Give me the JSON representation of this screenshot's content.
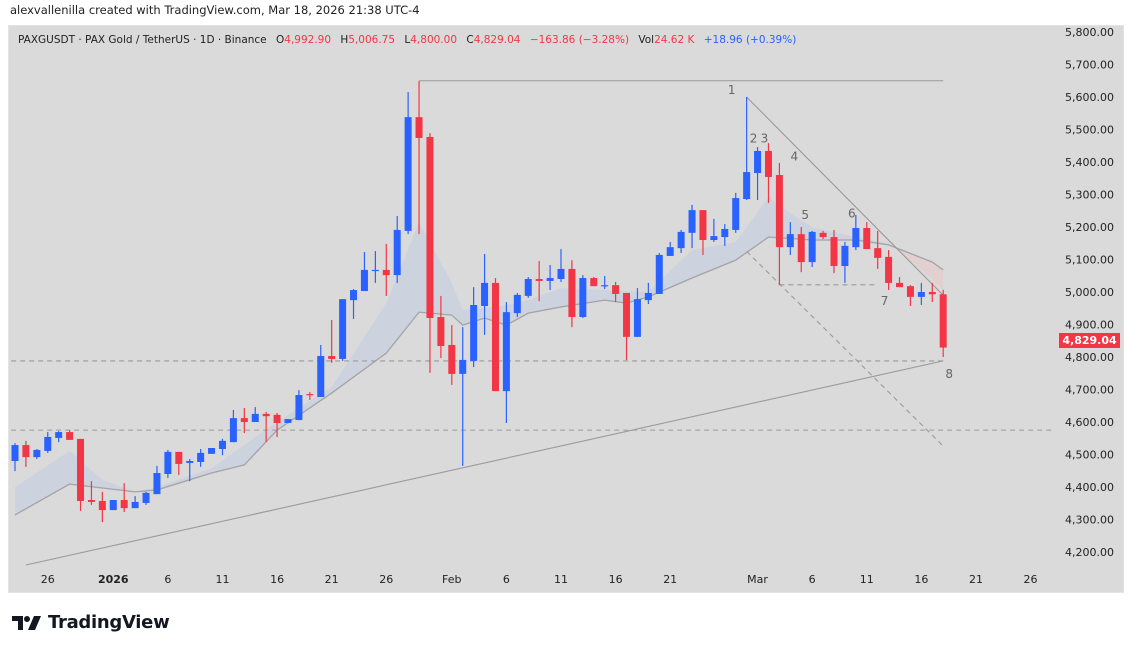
{
  "credit": "alexvallenilla created with TradingView.com, Mar 18, 2026 21:38 UTC-4",
  "legend": {
    "symbol": "PAXGUSDT · PAX Gold / TetherUS · 1D · Binance",
    "o_label": "O",
    "o_value": "4,992.90",
    "h_label": "H",
    "h_value": "5,006.75",
    "l_label": "L",
    "l_value": "4,800.00",
    "c_label": "C",
    "c_value": "4,829.04",
    "change": "−163.86 (−3.28%)",
    "vol_label": "Vol",
    "vol_value": "24.62 K",
    "vol_change": "+18.96 (+0.39%)"
  },
  "last_price_label": "4,829.04",
  "brand": "TradingView",
  "colors": {
    "up": "#2962ff",
    "down": "#f23645",
    "background": "#dadada",
    "ma_bull_fill": "#cdd3de",
    "ma_bear_fill": "#e2d0d0",
    "drawing": "#9a9a9a"
  },
  "chart_data": {
    "type": "candlestick",
    "symbol": "PAXGUSDT",
    "interval": "1D",
    "ylim": [
      4150,
      5820
    ],
    "grid": false,
    "y_ticks": [
      "5,800.00",
      "5,700.00",
      "5,600.00",
      "5,500.00",
      "5,400.00",
      "5,300.00",
      "5,200.00",
      "5,100.00",
      "5,000.00",
      "4,900.00",
      "4,800.00",
      "4,700.00",
      "4,600.00",
      "4,500.00",
      "4,400.00",
      "4,300.00",
      "4,200.00"
    ],
    "y_tick_values": [
      5800,
      5700,
      5600,
      5500,
      5400,
      5300,
      5200,
      5100,
      5000,
      4900,
      4800,
      4700,
      4600,
      4500,
      4400,
      4300,
      4200
    ],
    "x_ticks": [
      {
        "date": "2025-12-26",
        "label": "26"
      },
      {
        "date": "2026-01-01",
        "label": "2026"
      },
      {
        "date": "2026-01-06",
        "label": "6"
      },
      {
        "date": "2026-01-11",
        "label": "11"
      },
      {
        "date": "2026-01-16",
        "label": "16"
      },
      {
        "date": "2026-01-21",
        "label": "21"
      },
      {
        "date": "2026-01-26",
        "label": "26"
      },
      {
        "date": "2026-02-01",
        "label": "Feb"
      },
      {
        "date": "2026-02-06",
        "label": "6"
      },
      {
        "date": "2026-02-11",
        "label": "11"
      },
      {
        "date": "2026-02-16",
        "label": "16"
      },
      {
        "date": "2026-02-21",
        "label": "21"
      },
      {
        "date": "2026-03-01",
        "label": "Mar"
      },
      {
        "date": "2026-03-06",
        "label": "6"
      },
      {
        "date": "2026-03-11",
        "label": "11"
      },
      {
        "date": "2026-03-16",
        "label": "16"
      },
      {
        "date": "2026-03-21",
        "label": "21"
      },
      {
        "date": "2026-03-26",
        "label": "26"
      }
    ],
    "x_range": [
      "2025-12-21",
      "2026-03-28"
    ],
    "candles_fields": [
      "date",
      "open",
      "high",
      "low",
      "close"
    ],
    "candles": [
      [
        "2025-12-23",
        4480,
        4535,
        4449,
        4529
      ],
      [
        "2025-12-24",
        4529,
        4542,
        4462,
        4492
      ],
      [
        "2025-12-25",
        4492,
        4517,
        4486,
        4514
      ],
      [
        "2025-12-26",
        4511,
        4569,
        4505,
        4554
      ],
      [
        "2025-12-27",
        4551,
        4572,
        4538,
        4569
      ],
      [
        "2025-12-28",
        4569,
        4575,
        4545,
        4545
      ],
      [
        "2025-12-29",
        4548,
        4548,
        4326,
        4357
      ],
      [
        "2025-12-30",
        4360,
        4418,
        4345,
        4354
      ],
      [
        "2025-12-31",
        4357,
        4385,
        4292,
        4329
      ],
      [
        "2026-01-01",
        4329,
        4360,
        4329,
        4360
      ],
      [
        "2026-01-02",
        4360,
        4412,
        4323,
        4335
      ],
      [
        "2026-01-03",
        4335,
        4372,
        4335,
        4354
      ],
      [
        "2026-01-04",
        4351,
        4385,
        4345,
        4382
      ],
      [
        "2026-01-05",
        4378,
        4465,
        4378,
        4443
      ],
      [
        "2026-01-06",
        4440,
        4514,
        4428,
        4508
      ],
      [
        "2026-01-07",
        4508,
        4508,
        4437,
        4471
      ],
      [
        "2026-01-08",
        4474,
        4486,
        4418,
        4480
      ],
      [
        "2026-01-09",
        4477,
        4517,
        4462,
        4505
      ],
      [
        "2026-01-10",
        4502,
        4520,
        4502,
        4520
      ],
      [
        "2026-01-11",
        4517,
        4548,
        4498,
        4542
      ],
      [
        "2026-01-12",
        4538,
        4637,
        4538,
        4612
      ],
      [
        "2026-01-13",
        4612,
        4643,
        4566,
        4600
      ],
      [
        "2026-01-14",
        4600,
        4646,
        4600,
        4625
      ],
      [
        "2026-01-15",
        4625,
        4631,
        4538,
        4618
      ],
      [
        "2026-01-16",
        4622,
        4628,
        4554,
        4597
      ],
      [
        "2026-01-17",
        4597,
        4609,
        4597,
        4609
      ],
      [
        "2026-01-18",
        4606,
        4698,
        4606,
        4683
      ],
      [
        "2026-01-19",
        4686,
        4692,
        4668,
        4683
      ],
      [
        "2026-01-20",
        4677,
        4837,
        4677,
        4803
      ],
      [
        "2026-01-21",
        4803,
        4914,
        4782,
        4794
      ],
      [
        "2026-01-22",
        4794,
        4978,
        4788,
        4978
      ],
      [
        "2026-01-23",
        4975,
        5009,
        4917,
        5006
      ],
      [
        "2026-01-24",
        5003,
        5123,
        5003,
        5068
      ],
      [
        "2026-01-25",
        5066,
        5126,
        5028,
        5068
      ],
      [
        "2026-01-26",
        5068,
        5148,
        4988,
        5052
      ],
      [
        "2026-01-27",
        5052,
        5234,
        5028,
        5191
      ],
      [
        "2026-01-28",
        5188,
        5615,
        5178,
        5538
      ],
      [
        "2026-01-29",
        5538,
        5649,
        5178,
        5474
      ],
      [
        "2026-01-30",
        5477,
        5489,
        4751,
        4920
      ],
      [
        "2026-01-31",
        4923,
        4988,
        4797,
        4834
      ],
      [
        "2026-02-01",
        4837,
        4898,
        4714,
        4748
      ],
      [
        "2026-02-02",
        4748,
        4892,
        4465,
        4791
      ],
      [
        "2026-02-03",
        4788,
        5015,
        4769,
        4960
      ],
      [
        "2026-02-04",
        4957,
        5117,
        4868,
        5028
      ],
      [
        "2026-02-05",
        5028,
        5043,
        4695,
        4695
      ],
      [
        "2026-02-06",
        4695,
        4969,
        4597,
        4938
      ],
      [
        "2026-02-07",
        4935,
        4997,
        4923,
        4991
      ],
      [
        "2026-02-08",
        4988,
        5046,
        4982,
        5040
      ],
      [
        "2026-02-09",
        5040,
        5095,
        4972,
        5034
      ],
      [
        "2026-02-10",
        5034,
        5083,
        5006,
        5043
      ],
      [
        "2026-02-11",
        5040,
        5132,
        5031,
        5071
      ],
      [
        "2026-02-12",
        5071,
        5098,
        4892,
        4923
      ],
      [
        "2026-02-13",
        4923,
        5052,
        4920,
        5043
      ],
      [
        "2026-02-14",
        5043,
        5046,
        5018,
        5018
      ],
      [
        "2026-02-15",
        5018,
        5049,
        5009,
        5021
      ],
      [
        "2026-02-16",
        5021,
        5031,
        4969,
        4994
      ],
      [
        "2026-02-17",
        4997,
        4997,
        4791,
        4862
      ],
      [
        "2026-02-18",
        4862,
        5012,
        4862,
        4978
      ],
      [
        "2026-02-19",
        4975,
        5028,
        4963,
        4997
      ],
      [
        "2026-02-20",
        4994,
        5120,
        4994,
        5114
      ],
      [
        "2026-02-21",
        5111,
        5154,
        5111,
        5138
      ],
      [
        "2026-02-22",
        5135,
        5191,
        5120,
        5185
      ],
      [
        "2026-02-23",
        5182,
        5268,
        5135,
        5252
      ],
      [
        "2026-02-24",
        5252,
        5252,
        5114,
        5160
      ],
      [
        "2026-02-25",
        5160,
        5225,
        5154,
        5172
      ],
      [
        "2026-02-26",
        5169,
        5209,
        5142,
        5194
      ],
      [
        "2026-02-27",
        5191,
        5305,
        5182,
        5289
      ],
      [
        "2026-02-28",
        5286,
        5600,
        5283,
        5369
      ],
      [
        "2026-03-01",
        5366,
        5446,
        5283,
        5434
      ],
      [
        "2026-03-02",
        5434,
        5458,
        5274,
        5354
      ],
      [
        "2026-03-03",
        5360,
        5397,
        5021,
        5138
      ],
      [
        "2026-03-04",
        5138,
        5215,
        5114,
        5178
      ],
      [
        "2026-03-05",
        5178,
        5200,
        5061,
        5092
      ],
      [
        "2026-03-06",
        5092,
        5188,
        5077,
        5185
      ],
      [
        "2026-03-07",
        5182,
        5188,
        5163,
        5169
      ],
      [
        "2026-03-08",
        5169,
        5191,
        5058,
        5080
      ],
      [
        "2026-03-09",
        5080,
        5154,
        5028,
        5142
      ],
      [
        "2026-03-10",
        5138,
        5237,
        5129,
        5197
      ],
      [
        "2026-03-11",
        5197,
        5215,
        5132,
        5132
      ],
      [
        "2026-03-12",
        5135,
        5188,
        5071,
        5105
      ],
      [
        "2026-03-13",
        5108,
        5129,
        5006,
        5028
      ],
      [
        "2026-03-14",
        5028,
        5046,
        5015,
        5015
      ],
      [
        "2026-03-15",
        5018,
        5021,
        4957,
        4985
      ],
      [
        "2026-03-16",
        4985,
        5028,
        4960,
        5000
      ],
      [
        "2026-03-17",
        5000,
        5028,
        4969,
        4993
      ],
      [
        "2026-03-18",
        4992.9,
        5006.75,
        4800.0,
        4829.04
      ]
    ],
    "ma_fields": [
      "date",
      "fast",
      "slow"
    ],
    "moving_averages": [
      [
        "2025-12-23",
        4400,
        4314
      ],
      [
        "2025-12-28",
        4511,
        4409
      ],
      [
        "2025-12-31",
        4422,
        4397
      ],
      [
        "2026-01-03",
        4385,
        4385
      ],
      [
        "2026-01-05",
        4400,
        4391
      ],
      [
        "2026-01-10",
        4458,
        4443
      ],
      [
        "2026-01-13",
        4530,
        4468
      ],
      [
        "2026-01-16",
        4600,
        4575
      ],
      [
        "2026-01-21",
        4708,
        4689
      ],
      [
        "2026-01-26",
        4966,
        4812
      ],
      [
        "2026-01-29",
        5215,
        4938
      ],
      [
        "2026-02-01",
        5028,
        4929
      ],
      [
        "2026-02-02",
        4945,
        4898
      ],
      [
        "2026-02-04",
        4951,
        4920
      ],
      [
        "2026-02-06",
        4960,
        4898
      ],
      [
        "2026-02-08",
        4975,
        4935
      ],
      [
        "2026-02-11",
        5012,
        4954
      ],
      [
        "2026-02-15",
        5006,
        4975
      ],
      [
        "2026-02-17",
        5003,
        4966
      ],
      [
        "2026-02-19",
        5000,
        4985
      ],
      [
        "2026-02-23",
        5129,
        5043
      ],
      [
        "2026-02-27",
        5154,
        5098
      ],
      [
        "2026-03-02",
        5292,
        5169
      ],
      [
        "2026-03-04",
        5243,
        5165
      ],
      [
        "2026-03-06",
        5200,
        5160
      ],
      [
        "2026-03-10",
        5169,
        5160
      ],
      [
        "2026-03-13",
        5151,
        5145
      ],
      [
        "2026-03-17",
        5040,
        5092
      ],
      [
        "2026-03-18",
        5006,
        5068
      ]
    ],
    "drawings": [
      {
        "kind": "horizontal-ray",
        "style": "solid",
        "from": [
          "2026-01-29",
          5650
        ],
        "to": [
          "2026-03-18",
          5650
        ]
      },
      {
        "kind": "horizontal-line",
        "style": "dashed",
        "from": [
          "2025-12-21",
          4788
        ],
        "to": [
          "2026-03-18",
          4788
        ]
      },
      {
        "kind": "horizontal-line",
        "style": "dashed",
        "from": [
          "2025-12-21",
          4575
        ],
        "to": [
          "2026-03-28",
          4575
        ]
      },
      {
        "kind": "trendline",
        "style": "solid",
        "from": [
          "2025-12-24",
          4160
        ],
        "to": [
          "2026-03-18",
          4788
        ]
      },
      {
        "kind": "trendline",
        "style": "solid",
        "from": [
          "2026-02-28",
          5600
        ],
        "to": [
          "2026-03-18",
          4990
        ]
      },
      {
        "kind": "trendline",
        "style": "dashed",
        "from": [
          "2026-02-28",
          5125
        ],
        "to": [
          "2026-03-18",
          4526
        ]
      },
      {
        "kind": "horizontal-segment",
        "style": "dashed",
        "from": [
          "2026-03-03",
          5022
        ],
        "to": [
          "2026-03-12",
          5022
        ]
      }
    ],
    "wave_labels": [
      {
        "text": "1",
        "date": "2026-02-27",
        "price": 5610
      },
      {
        "text": "2",
        "date": "2026-03-01",
        "price": 5460
      },
      {
        "text": "3",
        "date": "2026-03-02",
        "price": 5460
      },
      {
        "text": "4",
        "date": "2026-03-04",
        "price": 5405
      },
      {
        "text": "5",
        "date": "2026-03-05",
        "price": 5225
      },
      {
        "text": "6",
        "date": "2026-03-10",
        "price": 5230
      },
      {
        "text": "7",
        "date": "2026-03-13",
        "price": 4960
      },
      {
        "text": "8",
        "date": "2026-03-18",
        "price": 4735
      }
    ]
  }
}
